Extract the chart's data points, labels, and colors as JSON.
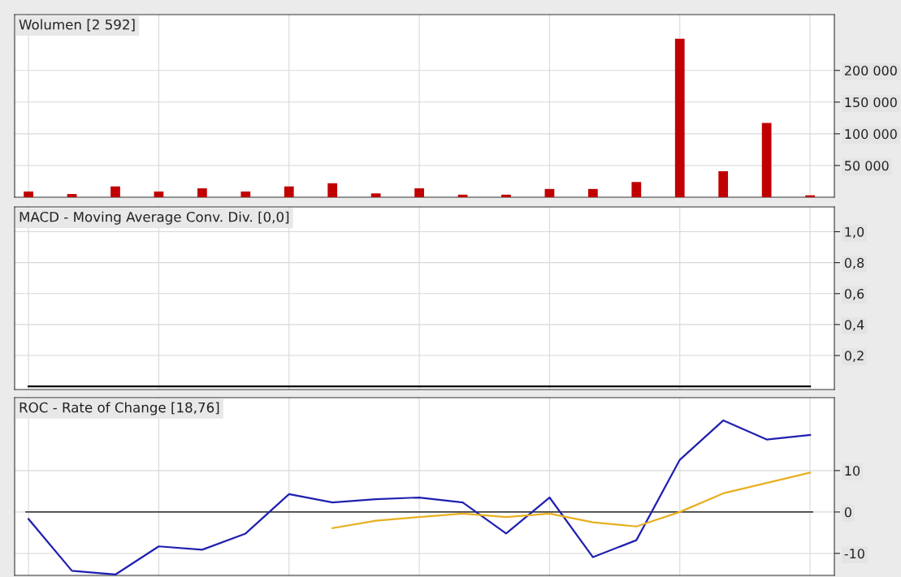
{
  "chart_data": [
    {
      "type": "bar",
      "title": "Wolumen [2 592]",
      "categories": [
        null,
        null,
        null,
        null,
        null,
        null,
        null,
        null,
        null,
        null,
        null,
        null,
        null,
        null,
        null,
        null,
        null,
        null,
        null
      ],
      "series": [
        {
          "color": "#c00000",
          "values": [
            9000,
            5000,
            17000,
            9000,
            14000,
            9000,
            17000,
            22000,
            6000,
            14000,
            4000,
            4000,
            13000,
            13000,
            24000,
            250000,
            41000,
            117000,
            3000
          ]
        }
      ],
      "ylim": [
        0,
        288000
      ],
      "yticks": [
        {
          "value": 50000,
          "label": "50 000"
        },
        {
          "value": 100000,
          "label": "100 000"
        },
        {
          "value": 150000,
          "label": "150 000"
        },
        {
          "value": 200000,
          "label": "200 000"
        }
      ],
      "grid": true,
      "tick_labels": "y"
    },
    {
      "type": "line",
      "title": "MACD - Moving Average Conv. Div. [0,0]",
      "categories": [
        null,
        null,
        null,
        null,
        null,
        null,
        null,
        null,
        null,
        null,
        null,
        null,
        null,
        null,
        null,
        null,
        null,
        null,
        null
      ],
      "series": [
        {
          "color": "#000000",
          "values": [
            0,
            0,
            0,
            0,
            0,
            0,
            0,
            0,
            0,
            0,
            0,
            0,
            0,
            0,
            0,
            0,
            0,
            0,
            0
          ]
        }
      ],
      "ylim": [
        -0.02,
        1.16
      ],
      "yticks": [
        {
          "value": 0.2,
          "label": "0,2"
        },
        {
          "value": 0.4,
          "label": "0,4"
        },
        {
          "value": 0.6,
          "label": "0,6"
        },
        {
          "value": 0.8,
          "label": "0,8"
        },
        {
          "value": 1.0,
          "label": "1,0"
        }
      ],
      "grid": true,
      "tick_labels": "y"
    },
    {
      "type": "line",
      "title": "ROC - Rate of Change [18,76]",
      "categories": [
        null,
        null,
        null,
        null,
        null,
        null,
        null,
        null,
        null,
        null,
        null,
        null,
        null,
        null,
        null,
        null,
        null,
        null,
        null
      ],
      "series": [
        {
          "color": "#2020b0",
          "values": [
            -1.7,
            -14.2,
            -15.1,
            -8.3,
            -9.1,
            -5.2,
            4.3,
            2.3,
            3.1,
            3.5,
            2.3,
            -5.2,
            3.5,
            -10.9,
            -6.8,
            12.6,
            22.1,
            17.5,
            18.6
          ]
        },
        {
          "color": "#e8b020",
          "values": [
            null,
            null,
            null,
            null,
            null,
            null,
            null,
            -3.9,
            -2.1,
            -1.2,
            -0.4,
            -1.2,
            -0.4,
            -2.5,
            -3.5,
            0,
            4.5,
            7,
            9.5
          ]
        }
      ],
      "ref_lines": [
        {
          "axis": "y",
          "value": 0,
          "color": "#000000"
        }
      ],
      "ylim": [
        -15.3,
        27.6
      ],
      "yticks": [
        -10,
        0,
        10
      ],
      "grid": true,
      "tick_labels": "y"
    }
  ]
}
